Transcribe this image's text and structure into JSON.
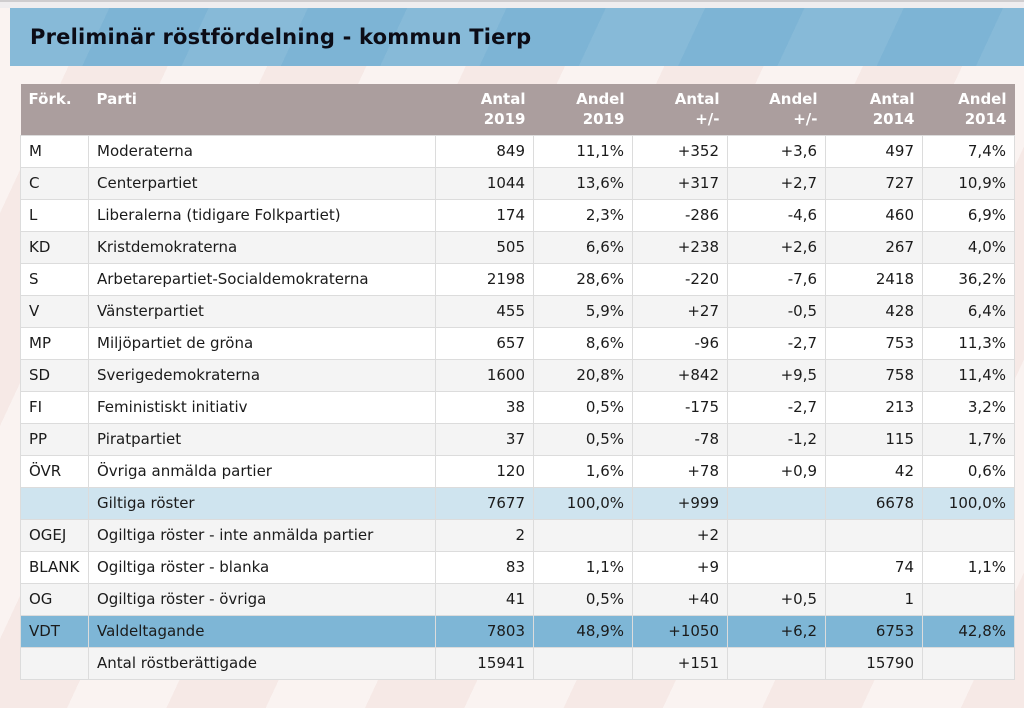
{
  "title": "Preliminär röstfördelning - kommun Tierp",
  "colors": {
    "title_bar": "#7db4d5",
    "header_row": "#ab9e9e",
    "row_white": "#ffffff",
    "row_gray": "#f4f4f4",
    "row_valid_votes": "#cfe4ef",
    "row_turnout": "#7eb6d6",
    "page_background": "#f6e9e6",
    "header_text": "#ffffff",
    "body_text": "#1b1b1b"
  },
  "table": {
    "headers": [
      {
        "line1": "Förk.",
        "line2": ""
      },
      {
        "line1": "Parti",
        "line2": ""
      },
      {
        "line1": "Antal",
        "line2": "2019"
      },
      {
        "line1": "Andel",
        "line2": "2019"
      },
      {
        "line1": "Antal",
        "line2": "+/-"
      },
      {
        "line1": "Andel",
        "line2": "+/-"
      },
      {
        "line1": "Antal",
        "line2": "2014"
      },
      {
        "line1": "Andel",
        "line2": "2014"
      }
    ],
    "rows": [
      {
        "abbr": "M",
        "party": "Moderaterna",
        "antal2019": "849",
        "andel2019": "11,1%",
        "antal_diff": "+352",
        "andel_diff": "+3,6",
        "antal2014": "497",
        "andel2014": "7,4%",
        "style": "white"
      },
      {
        "abbr": "C",
        "party": "Centerpartiet",
        "antal2019": "1044",
        "andel2019": "13,6%",
        "antal_diff": "+317",
        "andel_diff": "+2,7",
        "antal2014": "727",
        "andel2014": "10,9%",
        "style": "gray"
      },
      {
        "abbr": "L",
        "party": "Liberalerna (tidigare Folkpartiet)",
        "antal2019": "174",
        "andel2019": "2,3%",
        "antal_diff": "-286",
        "andel_diff": "-4,6",
        "antal2014": "460",
        "andel2014": "6,9%",
        "style": "white"
      },
      {
        "abbr": "KD",
        "party": "Kristdemokraterna",
        "antal2019": "505",
        "andel2019": "6,6%",
        "antal_diff": "+238",
        "andel_diff": "+2,6",
        "antal2014": "267",
        "andel2014": "4,0%",
        "style": "gray"
      },
      {
        "abbr": "S",
        "party": "Arbetarepartiet-Socialdemokraterna",
        "antal2019": "2198",
        "andel2019": "28,6%",
        "antal_diff": "-220",
        "andel_diff": "-7,6",
        "antal2014": "2418",
        "andel2014": "36,2%",
        "style": "white"
      },
      {
        "abbr": "V",
        "party": "Vänsterpartiet",
        "antal2019": "455",
        "andel2019": "5,9%",
        "antal_diff": "+27",
        "andel_diff": "-0,5",
        "antal2014": "428",
        "andel2014": "6,4%",
        "style": "gray"
      },
      {
        "abbr": "MP",
        "party": "Miljöpartiet de gröna",
        "antal2019": "657",
        "andel2019": "8,6%",
        "antal_diff": "-96",
        "andel_diff": "-2,7",
        "antal2014": "753",
        "andel2014": "11,3%",
        "style": "white"
      },
      {
        "abbr": "SD",
        "party": "Sverigedemokraterna",
        "antal2019": "1600",
        "andel2019": "20,8%",
        "antal_diff": "+842",
        "andel_diff": "+9,5",
        "antal2014": "758",
        "andel2014": "11,4%",
        "style": "gray"
      },
      {
        "abbr": "FI",
        "party": "Feministiskt initiativ",
        "antal2019": "38",
        "andel2019": "0,5%",
        "antal_diff": "-175",
        "andel_diff": "-2,7",
        "antal2014": "213",
        "andel2014": "3,2%",
        "style": "white"
      },
      {
        "abbr": "PP",
        "party": "Piratpartiet",
        "antal2019": "37",
        "andel2019": "0,5%",
        "antal_diff": "-78",
        "andel_diff": "-1,2",
        "antal2014": "115",
        "andel2014": "1,7%",
        "style": "gray"
      },
      {
        "abbr": "ÖVR",
        "party": "Övriga anmälda partier",
        "antal2019": "120",
        "andel2019": "1,6%",
        "antal_diff": "+78",
        "andel_diff": "+0,9",
        "antal2014": "42",
        "andel2014": "0,6%",
        "style": "white"
      },
      {
        "abbr": "",
        "party": "Giltiga röster",
        "antal2019": "7677",
        "andel2019": "100,0%",
        "antal_diff": "+999",
        "andel_diff": "",
        "antal2014": "6678",
        "andel2014": "100,0%",
        "style": "lightblue"
      },
      {
        "abbr": "OGEJ",
        "party": "Ogiltiga röster - inte anmälda partier",
        "antal2019": "2",
        "andel2019": "",
        "antal_diff": "+2",
        "andel_diff": "",
        "antal2014": "",
        "andel2014": "",
        "style": "gray"
      },
      {
        "abbr": "BLANK",
        "party": "Ogiltiga röster - blanka",
        "antal2019": "83",
        "andel2019": "1,1%",
        "antal_diff": "+9",
        "andel_diff": "",
        "antal2014": "74",
        "andel2014": "1,1%",
        "style": "white"
      },
      {
        "abbr": "OG",
        "party": "Ogiltiga röster - övriga",
        "antal2019": "41",
        "andel2019": "0,5%",
        "antal_diff": "+40",
        "andel_diff": "+0,5",
        "antal2014": "1",
        "andel2014": "",
        "style": "gray"
      },
      {
        "abbr": "VDT",
        "party": "Valdeltagande",
        "antal2019": "7803",
        "andel2019": "48,9%",
        "antal_diff": "+1050",
        "andel_diff": "+6,2",
        "antal2014": "6753",
        "andel2014": "42,8%",
        "style": "blue"
      },
      {
        "abbr": "",
        "party": "Antal röstberättigade",
        "antal2019": "15941",
        "andel2019": "",
        "antal_diff": "+151",
        "andel_diff": "",
        "antal2014": "15790",
        "andel2014": "",
        "style": "gray"
      }
    ]
  }
}
